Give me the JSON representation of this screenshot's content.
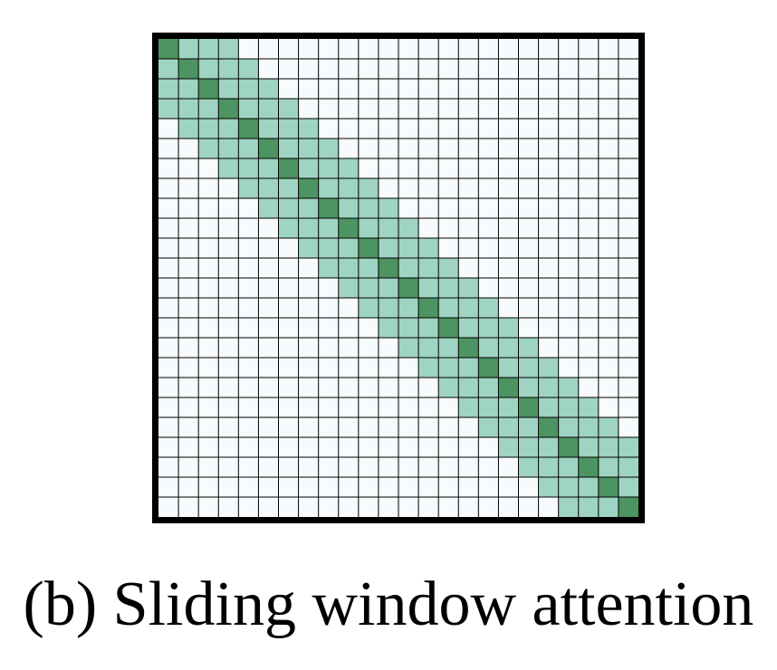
{
  "figure": {
    "caption": "(b) Sliding window attention"
  },
  "attention_matrix": {
    "size": 24,
    "window_before": 3,
    "window_after": 3,
    "colors": {
      "background": "#f7fbfd",
      "window": "#9fd4c2",
      "diagonal": "#4c9461",
      "grid_line": "#000000",
      "border": "#000000"
    }
  }
}
